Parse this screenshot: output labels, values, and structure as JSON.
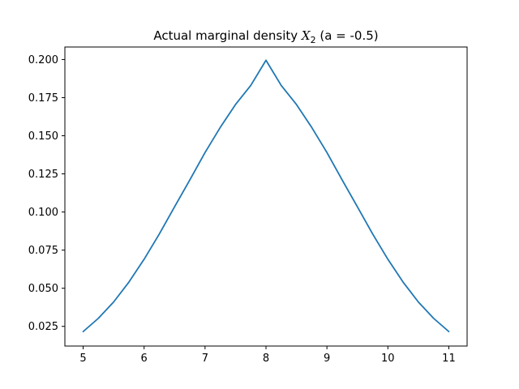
{
  "chart_data": {
    "type": "line",
    "title": {
      "prefix": "Actual marginal density ",
      "var": "X",
      "sub": "2",
      "suffix": " (a = -0.5)"
    },
    "xlabel": "",
    "ylabel": "",
    "xlim": [
      4.7,
      11.3
    ],
    "ylim": [
      0.0121,
      0.2082
    ],
    "xticks": [
      5,
      6,
      7,
      8,
      9,
      10,
      11
    ],
    "xtick_labels": [
      "5",
      "6",
      "7",
      "8",
      "9",
      "10",
      "11"
    ],
    "yticks": [
      0.025,
      0.05,
      0.075,
      0.1,
      0.125,
      0.15,
      0.175,
      0.2
    ],
    "ytick_labels": [
      "0.025",
      "0.050",
      "0.075",
      "0.100",
      "0.125",
      "0.150",
      "0.175",
      "0.200"
    ],
    "grid": false,
    "legend": "none",
    "series": [
      {
        "color": "#1f77b4",
        "x": [
          5.0,
          5.25,
          5.5,
          5.75,
          6.0,
          6.25,
          6.5,
          6.75,
          7.0,
          7.25,
          7.5,
          7.75,
          8.0,
          8.25,
          8.5,
          8.75,
          9.0,
          9.25,
          9.5,
          9.75,
          10.0,
          10.25,
          10.5,
          10.75,
          11.0
        ],
        "y": [
          0.0216,
          0.0303,
          0.041,
          0.054,
          0.069,
          0.0856,
          0.1034,
          0.121,
          0.139,
          0.1555,
          0.1705,
          0.183,
          0.1995,
          0.183,
          0.1705,
          0.1555,
          0.139,
          0.121,
          0.1034,
          0.0856,
          0.069,
          0.054,
          0.041,
          0.0303,
          0.0216
        ]
      }
    ]
  }
}
